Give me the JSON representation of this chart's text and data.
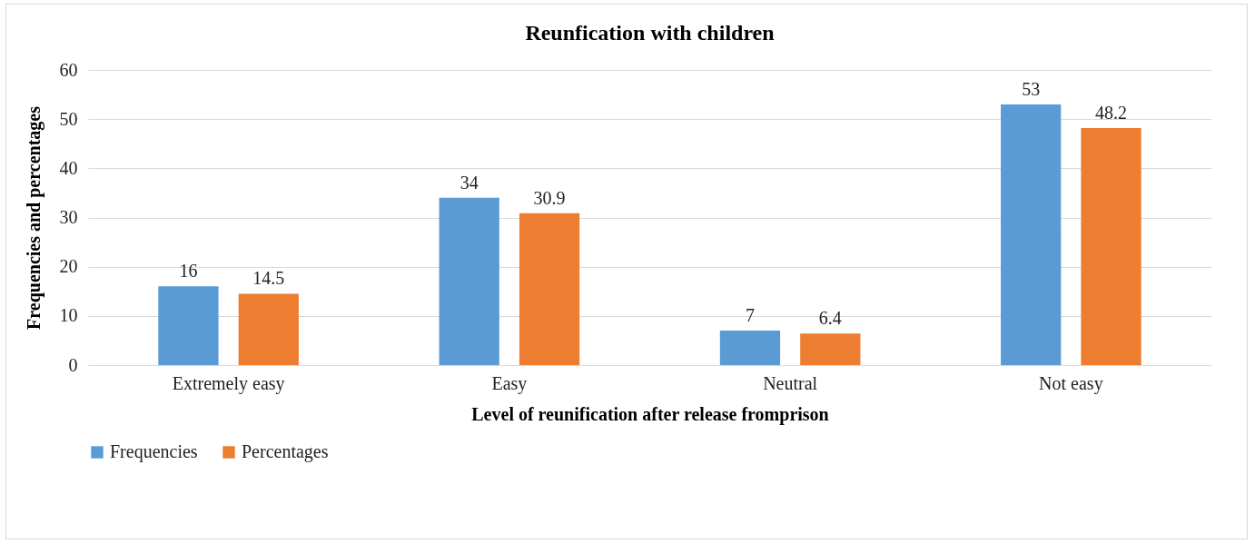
{
  "chart_data": {
    "type": "bar",
    "title": "Reunfication with children",
    "xlabel": "Level of reunification after release fromprison",
    "ylabel": "Frequencies and percentages",
    "categories": [
      "Extremely easy",
      "Easy",
      "Neutral",
      "Not easy"
    ],
    "series": [
      {
        "name": "Frequencies",
        "color": "#5b9bd5",
        "values": [
          16,
          34,
          7,
          53
        ]
      },
      {
        "name": "Percentages",
        "color": "#ed7d31",
        "values": [
          14.5,
          30.9,
          6.4,
          48.2
        ]
      }
    ],
    "ylim": [
      0,
      60
    ],
    "yticks": [
      0,
      10,
      20,
      30,
      40,
      50,
      60
    ],
    "grid": "y",
    "legend": "bottom",
    "data_labels": true
  }
}
